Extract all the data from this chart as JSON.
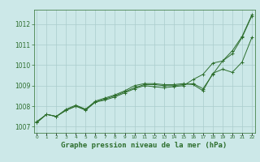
{
  "title": "Graphe pression niveau de la mer (hPa)",
  "series": [
    [
      1007.2,
      1007.6,
      1007.5,
      1007.8,
      1008.0,
      1007.85,
      1008.2,
      1008.35,
      1008.5,
      1008.7,
      1008.9,
      1009.05,
      1009.05,
      1009.0,
      1009.0,
      1009.05,
      1009.1,
      1008.85,
      1009.55,
      1010.2,
      1010.55,
      1011.35,
      1012.4
    ],
    [
      1007.25,
      1007.6,
      1007.5,
      1007.85,
      1008.05,
      1007.85,
      1008.25,
      1008.4,
      1008.55,
      1008.75,
      1009.0,
      1009.1,
      1009.1,
      1009.05,
      1009.05,
      1009.1,
      1009.05,
      1008.75,
      1009.6,
      1009.8,
      1009.65,
      1010.15,
      1011.35
    ],
    [
      1007.2,
      1007.6,
      1007.5,
      1007.8,
      1008.0,
      1007.8,
      1008.2,
      1008.3,
      1008.45,
      1008.65,
      1008.85,
      1009.0,
      1008.95,
      1008.9,
      1008.95,
      1009.0,
      1009.3,
      1009.55,
      1010.1,
      1010.2,
      1010.7,
      1011.4,
      1012.45
    ]
  ],
  "line_color": "#2d6e2d",
  "bg_color": "#cce8e8",
  "grid_color": "#aacccc",
  "tick_color": "#2d6e2d",
  "text_color": "#2d6e2d",
  "ylim": [
    1006.7,
    1012.7
  ],
  "yticks": [
    1007,
    1008,
    1009,
    1010,
    1011,
    1012
  ],
  "marker": "+"
}
